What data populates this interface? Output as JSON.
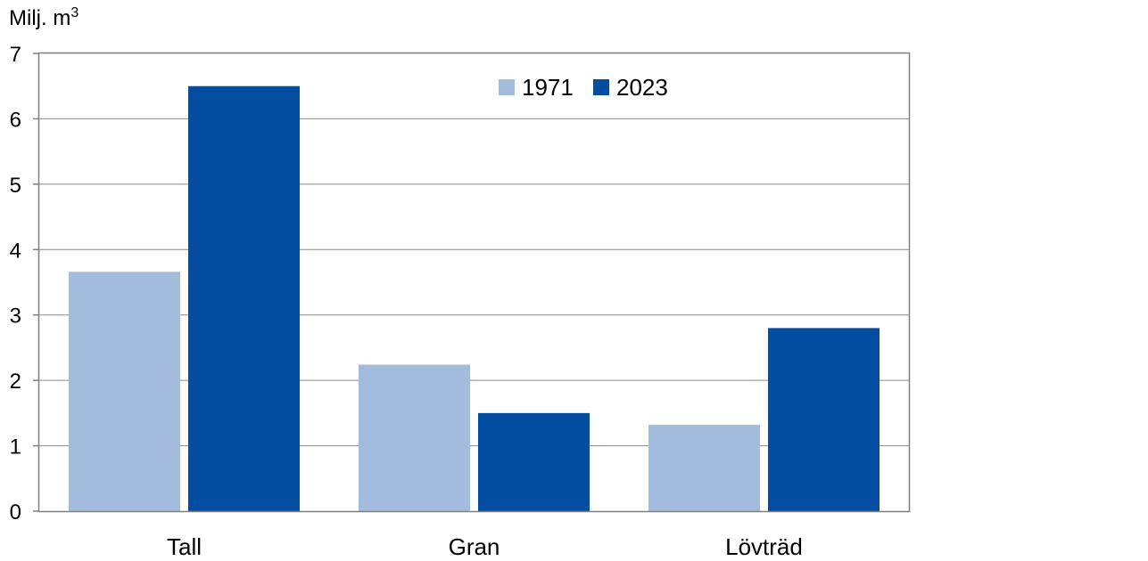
{
  "chart_data": {
    "type": "bar",
    "ylabel": "Milj. m",
    "ylabel_superscript": "3",
    "categories": [
      "Tall",
      "Gran",
      "Lövträd"
    ],
    "series": [
      {
        "name": "1971",
        "color": "#a3bcdd",
        "values": [
          3.66,
          2.24,
          1.32
        ]
      },
      {
        "name": "2023",
        "color": "#044ea2",
        "values": [
          6.5,
          1.5,
          2.8
        ]
      }
    ],
    "ylim": [
      0,
      7
    ],
    "yticks": [
      0,
      1,
      2,
      3,
      4,
      5,
      6,
      7
    ],
    "grid": true,
    "legend_position": "top-center"
  }
}
